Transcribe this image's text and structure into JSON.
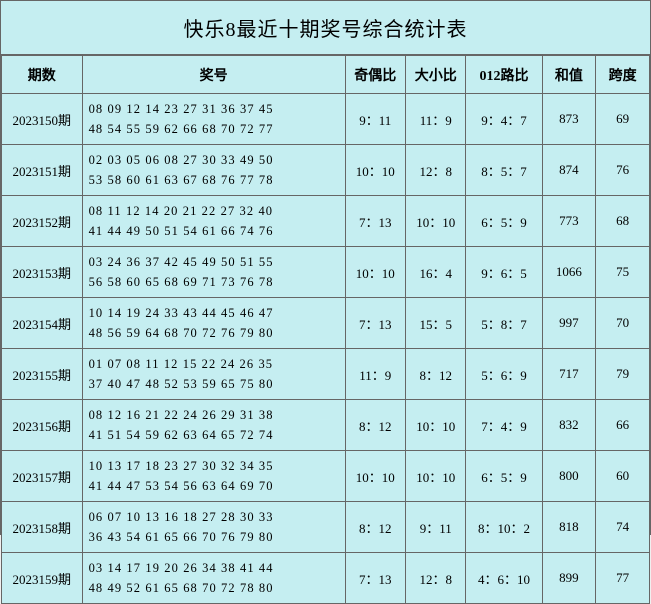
{
  "title": "快乐8最近十期奖号综合统计表",
  "background_color": "#c5eef1",
  "border_color": "#666666",
  "columns": {
    "period": "期数",
    "numbers": "奖号",
    "odd_even": "奇偶比",
    "big_small": "大小比",
    "route012": "012路比",
    "sum": "和值",
    "span": "跨度"
  },
  "rows": [
    {
      "period": "2023150期",
      "numbers_line1": "08 09 12 14 23 27 31 36 37 45",
      "numbers_line2": "48 54 55 59 62 66 68 70 72 77",
      "odd_even": "9：11",
      "big_small": "11：9",
      "route012": "9：4：7",
      "sum": "873",
      "span": "69"
    },
    {
      "period": "2023151期",
      "numbers_line1": "02 03 05 06 08 27 30 33 49 50",
      "numbers_line2": "53 58 60 61 63 67 68 76 77 78",
      "odd_even": "10：10",
      "big_small": "12：8",
      "route012": "8：5：7",
      "sum": "874",
      "span": "76"
    },
    {
      "period": "2023152期",
      "numbers_line1": "08 11 12 14 20 21 22 27 32 40",
      "numbers_line2": "41 44 49 50 51 54 61 66 74 76",
      "odd_even": "7：13",
      "big_small": "10：10",
      "route012": "6：5：9",
      "sum": "773",
      "span": "68"
    },
    {
      "period": "2023153期",
      "numbers_line1": "03 24 36 37 42 45 49 50 51 55",
      "numbers_line2": "56 58 60 65 68 69 71 73 76 78",
      "odd_even": "10：10",
      "big_small": "16：4",
      "route012": "9：6：5",
      "sum": "1066",
      "span": "75"
    },
    {
      "period": "2023154期",
      "numbers_line1": "10 14 19 24 33 43 44 45 46 47",
      "numbers_line2": "48 56 59 64 68 70 72 76 79 80",
      "odd_even": "7：13",
      "big_small": "15：5",
      "route012": "5：8：7",
      "sum": "997",
      "span": "70"
    },
    {
      "period": "2023155期",
      "numbers_line1": "01 07 08 11 12 15 22 24 26 35",
      "numbers_line2": "37 40 47 48 52 53 59 65 75 80",
      "odd_even": "11：9",
      "big_small": "8：12",
      "route012": "5：6：9",
      "sum": "717",
      "span": "79"
    },
    {
      "period": "2023156期",
      "numbers_line1": "08 12 16 21 22 24 26 29 31 38",
      "numbers_line2": "41 51 54 59 62 63 64 65 72 74",
      "odd_even": "8：12",
      "big_small": "10：10",
      "route012": "7：4：9",
      "sum": "832",
      "span": "66"
    },
    {
      "period": "2023157期",
      "numbers_line1": "10 13 17 18 23 27 30 32 34 35",
      "numbers_line2": "41 44 47 53 54 56 63 64 69 70",
      "odd_even": "10：10",
      "big_small": "10：10",
      "route012": "6：5：9",
      "sum": "800",
      "span": "60"
    },
    {
      "period": "2023158期",
      "numbers_line1": "06 07 10 13 16 18 27 28 30 33",
      "numbers_line2": "36 43 54 61 65 66 70 76 79 80",
      "odd_even": "8：12",
      "big_small": "9：11",
      "route012": "8：10：2",
      "sum": "818",
      "span": "74"
    },
    {
      "period": "2023159期",
      "numbers_line1": "03 14 17 19 20 26 34 38 41 44",
      "numbers_line2": "48 49 52 61 65 68 70 72 78 80",
      "odd_even": "7：13",
      "big_small": "12：8",
      "route012": "4：6：10",
      "sum": "899",
      "span": "77"
    }
  ]
}
